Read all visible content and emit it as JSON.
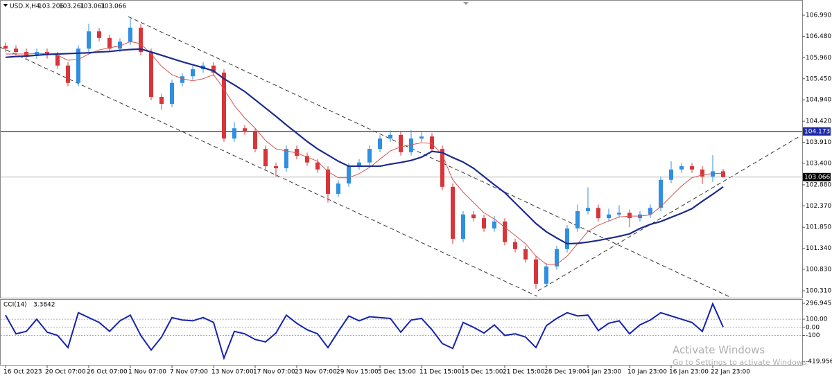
{
  "chart_data": [
    {
      "type": "candlestick",
      "symbol": "USD.X,H4",
      "categories": [
        "16 Oct 2023",
        null,
        null,
        null,
        "20 Oct 07:00",
        null,
        null,
        null,
        "26 Oct 07:00",
        null,
        null,
        null,
        "1 Nov 07:00",
        null,
        null,
        null,
        "7 Nov 07:00",
        null,
        null,
        null,
        "13 Nov 07:00",
        null,
        null,
        null,
        "17 Nov 07:00",
        null,
        null,
        null,
        "23 Nov 07:00",
        null,
        null,
        null,
        "29 Nov 15:00",
        null,
        null,
        null,
        "5 Dec 15:00",
        null,
        null,
        null,
        "11 Dec 15:00",
        null,
        null,
        null,
        "15 Dec 15:00",
        null,
        null,
        null,
        "21 Dec 15:00",
        null,
        null,
        null,
        "28 Dec 19:00",
        null,
        null,
        null,
        "4 Jan 23:00",
        null,
        null,
        null,
        "10 Jan 23:00",
        null,
        null,
        null,
        "16 Jan 23:00",
        null,
        null,
        null,
        "22 Jan 23:00",
        null
      ],
      "open": [
        106.25,
        106.18,
        106.1,
        106.02,
        106.1,
        106.02,
        105.77,
        105.35,
        106.18,
        106.6,
        106.44,
        106.18,
        106.35,
        106.69,
        106.1,
        105.01,
        104.84,
        105.35,
        105.51,
        105.68,
        105.77,
        105.6,
        104.0,
        104.25,
        104.17,
        103.75,
        103.33,
        103.28,
        103.75,
        103.58,
        103.42,
        103.25,
        102.66,
        102.91,
        103.33,
        103.42,
        103.75,
        104.0,
        104.09,
        103.67,
        104.0,
        104.05,
        103.75,
        102.83,
        101.57,
        102.16,
        102.07,
        101.82,
        101.99,
        101.49,
        101.32,
        101.07,
        100.48,
        100.9,
        101.32,
        101.82,
        102.24,
        102.32,
        102.07,
        102.16,
        102.2,
        102.07,
        102.16,
        102.32,
        103.0,
        103.25,
        103.33,
        103.25,
        103.08,
        103.206
      ],
      "high": [
        106.33,
        106.26,
        106.18,
        106.18,
        106.18,
        106.1,
        105.85,
        106.26,
        106.78,
        106.68,
        106.52,
        106.43,
        106.92,
        106.77,
        106.18,
        105.09,
        105.43,
        105.59,
        105.76,
        105.85,
        105.85,
        105.68,
        104.4,
        104.33,
        104.25,
        103.83,
        103.41,
        103.83,
        103.83,
        103.66,
        103.5,
        103.33,
        102.99,
        103.41,
        103.5,
        103.83,
        104.08,
        104.2,
        104.17,
        104.2,
        104.15,
        104.13,
        103.83,
        102.91,
        102.24,
        102.24,
        102.15,
        102.12,
        102.07,
        101.57,
        101.4,
        101.15,
        100.98,
        101.4,
        101.9,
        102.4,
        102.82,
        102.4,
        102.3,
        102.38,
        102.28,
        102.24,
        102.4,
        103.08,
        103.45,
        103.41,
        103.41,
        103.33,
        103.6,
        103.261
      ],
      "low": [
        106.1,
        106.02,
        105.94,
        105.94,
        105.94,
        105.69,
        105.27,
        105.27,
        106.1,
        106.36,
        106.1,
        106.1,
        106.27,
        106.02,
        104.93,
        104.7,
        104.76,
        105.27,
        105.43,
        105.6,
        105.52,
        103.92,
        103.92,
        104.09,
        103.67,
        103.25,
        103.08,
        103.2,
        103.5,
        103.34,
        103.17,
        102.45,
        102.58,
        102.83,
        103.25,
        103.34,
        103.67,
        103.92,
        103.59,
        103.59,
        103.92,
        103.67,
        102.75,
        101.45,
        101.49,
        101.99,
        101.74,
        101.74,
        101.41,
        101.24,
        100.99,
        100.36,
        100.4,
        100.82,
        101.24,
        101.74,
        102.16,
        101.99,
        101.99,
        102.08,
        101.85,
        101.99,
        102.08,
        102.24,
        102.92,
        103.17,
        103.17,
        102.9,
        102.95,
        103.061
      ],
      "close": [
        106.18,
        106.1,
        106.02,
        106.1,
        106.02,
        105.77,
        105.35,
        106.18,
        106.6,
        106.44,
        106.18,
        106.35,
        106.69,
        106.1,
        105.01,
        104.84,
        105.35,
        105.51,
        105.68,
        105.77,
        105.6,
        104.0,
        104.25,
        104.17,
        103.75,
        103.33,
        103.28,
        103.75,
        103.58,
        103.42,
        103.25,
        102.66,
        102.91,
        103.33,
        103.42,
        103.75,
        104.0,
        104.09,
        103.67,
        104.0,
        104.05,
        103.75,
        102.83,
        101.57,
        102.16,
        102.07,
        101.82,
        101.99,
        101.49,
        101.32,
        101.07,
        100.48,
        100.9,
        101.32,
        101.82,
        102.24,
        102.32,
        102.07,
        102.16,
        102.2,
        102.07,
        102.16,
        102.32,
        103.0,
        103.25,
        103.33,
        103.25,
        103.08,
        103.206,
        103.066
      ],
      "up_color": "#2f8fe0",
      "down_color": "#d8353a",
      "overlays": [
        {
          "color": "#d9534f",
          "values": [
            106.05,
            106.05,
            106.05,
            106.06,
            106.06,
            106.02,
            105.9,
            105.92,
            106.05,
            106.15,
            106.2,
            106.25,
            106.35,
            106.3,
            106.05,
            105.75,
            105.55,
            105.45,
            105.4,
            105.45,
            105.55,
            105.2,
            104.8,
            104.5,
            104.25,
            103.95,
            103.75,
            103.7,
            103.65,
            103.55,
            103.45,
            103.2,
            103.05,
            103.05,
            103.15,
            103.3,
            103.5,
            103.7,
            103.8,
            103.85,
            103.9,
            103.88,
            103.6,
            103.0,
            102.7,
            102.45,
            102.2,
            102.05,
            101.85,
            101.65,
            101.45,
            101.15,
            100.95,
            100.95,
            101.15,
            101.45,
            101.75,
            101.9,
            102.0,
            102.1,
            102.12,
            102.12,
            102.15,
            102.35,
            102.6,
            102.85,
            103.05,
            103.12,
            103.15,
            103.16
          ]
        },
        {
          "color": "#1c2a8c",
          "values": [
            105.97,
            105.99,
            106.0,
            106.02,
            106.04,
            106.05,
            106.06,
            106.07,
            106.08,
            106.1,
            106.11,
            106.14,
            106.16,
            106.17,
            106.1,
            106.02,
            105.94,
            105.86,
            105.79,
            105.72,
            105.64,
            105.45,
            105.3,
            105.14,
            104.94,
            104.74,
            104.54,
            104.33,
            104.13,
            103.93,
            103.75,
            103.6,
            103.45,
            103.33,
            103.33,
            103.33,
            103.33,
            103.38,
            103.42,
            103.47,
            103.55,
            103.69,
            103.66,
            103.54,
            103.43,
            103.28,
            103.08,
            102.88,
            102.69,
            102.44,
            102.19,
            101.94,
            101.74,
            101.59,
            101.45,
            101.46,
            101.49,
            101.53,
            101.58,
            101.63,
            101.69,
            101.82,
            101.92,
            101.99,
            102.09,
            102.19,
            102.3,
            102.48,
            102.65,
            102.83
          ]
        }
      ],
      "hline": {
        "value": 104.173,
        "color": "#1c2aa8"
      },
      "ylim": [
        100.142,
        107.259
      ],
      "yticks": [
        {
          "value": 106.99,
          "label": "106.990"
        },
        {
          "value": 106.48,
          "label": "106.480"
        },
        {
          "value": 105.96,
          "label": "105.960"
        },
        {
          "value": 105.45,
          "label": "105.450"
        },
        {
          "value": 104.94,
          "label": "104.940"
        },
        {
          "value": 104.42,
          "label": "104.420"
        },
        {
          "value": 103.91,
          "label": "103.910"
        },
        {
          "value": 103.4,
          "label": "103.400"
        },
        {
          "value": 102.88,
          "label": "102.880"
        },
        {
          "value": 102.37,
          "label": "102.370"
        },
        {
          "value": 101.85,
          "label": "101.850"
        },
        {
          "value": 101.34,
          "label": "101.340"
        },
        {
          "value": 100.83,
          "label": "100.830"
        },
        {
          "value": 100.31,
          "label": "100.310"
        }
      ]
    },
    {
      "type": "line",
      "title": "CCI(14)",
      "color": "#1422b0",
      "values": [
        150,
        -80,
        -50,
        100,
        -60,
        -100,
        -250,
        180,
        120,
        60,
        -50,
        80,
        150,
        -100,
        -280,
        -120,
        120,
        90,
        80,
        120,
        60,
        -380,
        -50,
        -80,
        -150,
        -180,
        -70,
        150,
        50,
        -30,
        -80,
        -250,
        -50,
        140,
        80,
        130,
        120,
        110,
        -60,
        90,
        110,
        -30,
        -200,
        -260,
        60,
        0,
        -70,
        30,
        -100,
        -80,
        -120,
        -250,
        20,
        110,
        180,
        140,
        150,
        -40,
        50,
        80,
        -80,
        30,
        90,
        180,
        140,
        100,
        60,
        -50,
        290,
        3.3842
      ],
      "ylim": [
        -419.9566,
        296.9452
      ],
      "yticks": [
        296.9452,
        {
          "value": 100,
          "label": "100.00"
        },
        {
          "value": 0,
          "label": "0.00"
        },
        -100,
        -419.9566
      ]
    }
  ],
  "watermark": {
    "title": "Activate Windows",
    "subtitle": "Go to Settings to activate Windows."
  }
}
